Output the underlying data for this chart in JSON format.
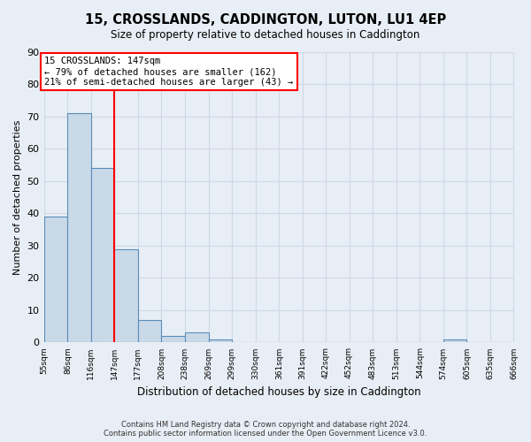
{
  "title": "15, CROSSLANDS, CADDINGTON, LUTON, LU1 4EP",
  "subtitle": "Size of property relative to detached houses in Caddington",
  "xlabel": "Distribution of detached houses by size in Caddington",
  "ylabel": "Number of detached properties",
  "bar_edges": [
    55,
    86,
    116,
    147,
    177,
    208,
    238,
    269,
    299,
    330,
    361,
    391,
    422,
    452,
    483,
    513,
    544,
    574,
    605,
    635,
    666
  ],
  "bar_heights": [
    39,
    71,
    54,
    29,
    7,
    2,
    3,
    1,
    0,
    0,
    0,
    0,
    0,
    0,
    0,
    0,
    0,
    1,
    0,
    0
  ],
  "bar_color": "#c9d9e8",
  "bar_edge_color": "#5b8db8",
  "vline_x": 147,
  "vline_color": "red",
  "annotation_text": "15 CROSSLANDS: 147sqm\n← 79% of detached houses are smaller (162)\n21% of semi-detached houses are larger (43) →",
  "annotation_box_color": "white",
  "annotation_border_color": "red",
  "ylim": [
    0,
    90
  ],
  "yticks": [
    0,
    10,
    20,
    30,
    40,
    50,
    60,
    70,
    80,
    90
  ],
  "tick_labels": [
    "55sqm",
    "86sqm",
    "116sqm",
    "147sqm",
    "177sqm",
    "208sqm",
    "238sqm",
    "269sqm",
    "299sqm",
    "330sqm",
    "361sqm",
    "391sqm",
    "422sqm",
    "452sqm",
    "483sqm",
    "513sqm",
    "544sqm",
    "574sqm",
    "605sqm",
    "635sqm",
    "666sqm"
  ],
  "grid_color": "#d0d8e8",
  "bg_color": "#e8eef5",
  "footer": "Contains HM Land Registry data © Crown copyright and database right 2024.\nContains public sector information licensed under the Open Government Licence v3.0."
}
